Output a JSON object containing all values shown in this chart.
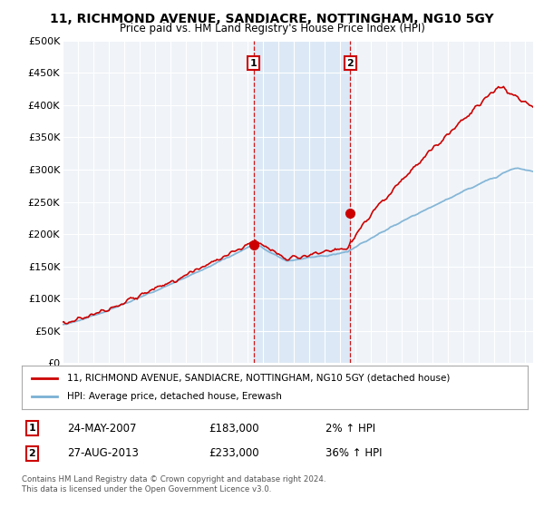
{
  "title_line1": "11, RICHMOND AVENUE, SANDIACRE, NOTTINGHAM, NG10 5GY",
  "title_line2": "Price paid vs. HM Land Registry's House Price Index (HPI)",
  "ylabel_ticks": [
    "£0",
    "£50K",
    "£100K",
    "£150K",
    "£200K",
    "£250K",
    "£300K",
    "£350K",
    "£400K",
    "£450K",
    "£500K"
  ],
  "ytick_vals": [
    0,
    50000,
    100000,
    150000,
    200000,
    250000,
    300000,
    350000,
    400000,
    450000,
    500000
  ],
  "ylim": [
    0,
    500000
  ],
  "xlim_start": 1995.0,
  "xlim_end": 2025.5,
  "property_color": "#cc0000",
  "hpi_color": "#7ab0d4",
  "sale1_year": 2007.38,
  "sale1_price": 183000,
  "sale2_year": 2013.65,
  "sale2_price": 233000,
  "legend_property": "11, RICHMOND AVENUE, SANDIACRE, NOTTINGHAM, NG10 5GY (detached house)",
  "legend_hpi": "HPI: Average price, detached house, Erewash",
  "annotation1_label": "1",
  "annotation1_date": "24-MAY-2007",
  "annotation1_price": "£183,000",
  "annotation1_hpi": "2% ↑ HPI",
  "annotation2_label": "2",
  "annotation2_date": "27-AUG-2013",
  "annotation2_price": "£233,000",
  "annotation2_hpi": "36% ↑ HPI",
  "footer": "Contains HM Land Registry data © Crown copyright and database right 2024.\nThis data is licensed under the Open Government Licence v3.0.",
  "background_color": "#ffffff",
  "plot_bg_color": "#f0f4f8",
  "shade_color": "#dce8f5"
}
